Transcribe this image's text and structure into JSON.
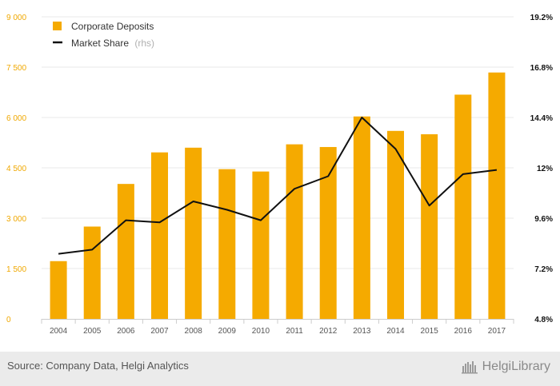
{
  "colors": {
    "bar": "#f5aa00",
    "line": "#111111",
    "left_axis_text": "#f0a800",
    "right_axis_text": "#111111",
    "grid": "#e9e9e9",
    "footer_bg": "#ebebeb"
  },
  "legend": {
    "bars_label": "Corporate Deposits",
    "line_label": "Market Share",
    "line_suffix": "(rhs)"
  },
  "footer": {
    "source": "Source: Company Data, Helgi Analytics",
    "brand": "HelgiLibrary"
  },
  "chart_data": {
    "type": "bar",
    "categories": [
      "2004",
      "2005",
      "2006",
      "2007",
      "2008",
      "2009",
      "2010",
      "2011",
      "2012",
      "2013",
      "2014",
      "2015",
      "2016",
      "2017"
    ],
    "series": [
      {
        "name": "Corporate Deposits",
        "type": "bar",
        "axis": "left",
        "values": [
          1720,
          2750,
          4020,
          4960,
          5100,
          4460,
          4390,
          5200,
          5120,
          6030,
          5600,
          5500,
          6680,
          7340
        ]
      },
      {
        "name": "Market Share",
        "suffix": "(rhs)",
        "type": "line",
        "axis": "right",
        "values": [
          7.9,
          8.1,
          9.5,
          9.4,
          10.4,
          10.0,
          9.5,
          11.0,
          11.6,
          14.4,
          12.9,
          10.2,
          11.7,
          11.9
        ]
      }
    ],
    "y_left": {
      "ticks": [
        "0",
        "1 500",
        "3 000",
        "4 500",
        "6 000",
        "7 500",
        "9 000"
      ],
      "range": [
        0,
        9000
      ]
    },
    "y_right": {
      "ticks": [
        "4.8%",
        "7.2%",
        "9.6%",
        "12%",
        "14.4%",
        "16.8%",
        "19.2%"
      ],
      "range": [
        4.8,
        19.2
      ]
    },
    "grid": true,
    "legend_position": "top-left"
  }
}
